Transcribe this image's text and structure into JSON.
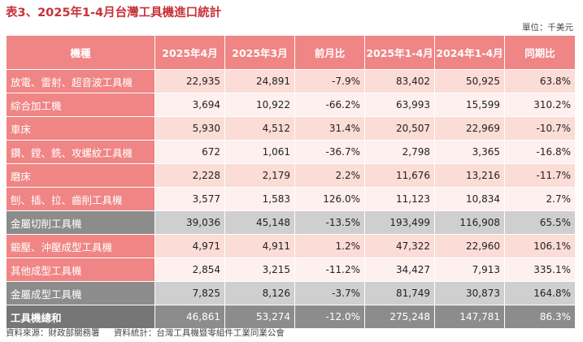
{
  "title": "表3、2025年1-4月台灣工具機進口統計",
  "unit": "單位：千美元",
  "columns": [
    "機種",
    "2025年4月",
    "2025年3月",
    "前月比",
    "2025年1-4月",
    "2024年1-4月",
    "同期比"
  ],
  "rows": [
    {
      "type": "odd",
      "cells": [
        "放電、雷射、超音波工具機",
        "22,935",
        "24,891",
        "-7.9%",
        "83,402",
        "50,925",
        "63.8%"
      ]
    },
    {
      "type": "even",
      "cells": [
        "綜合加工機",
        "3,694",
        "10,922",
        "-66.2%",
        "63,993",
        "15,599",
        "310.2%"
      ]
    },
    {
      "type": "odd",
      "cells": [
        "車床",
        "5,930",
        "4,512",
        "31.4%",
        "20,507",
        "22,969",
        "-10.7%"
      ]
    },
    {
      "type": "even",
      "cells": [
        "鑽、鏜、銑、攻螺紋工具機",
        "672",
        "1,061",
        "-36.7%",
        "2,798",
        "3,365",
        "-16.8%"
      ]
    },
    {
      "type": "odd",
      "cells": [
        "磨床",
        "2,228",
        "2,179",
        "2.2%",
        "11,676",
        "13,216",
        "-11.7%"
      ]
    },
    {
      "type": "even",
      "cells": [
        "刨、插、拉、齒削工具機",
        "3,577",
        "1,583",
        "126.0%",
        "11,123",
        "10,834",
        "2.7%"
      ]
    },
    {
      "type": "subtotal",
      "cells": [
        "金屬切削工具機",
        "39,036",
        "45,148",
        "-13.5%",
        "193,499",
        "116,908",
        "65.5%"
      ]
    },
    {
      "type": "odd",
      "cells": [
        "鍛壓、沖壓成型工具機",
        "4,971",
        "4,911",
        "1.2%",
        "47,322",
        "22,960",
        "106.1%"
      ]
    },
    {
      "type": "even",
      "cells": [
        "其他成型工具機",
        "2,854",
        "3,215",
        "-11.2%",
        "34,427",
        "7,913",
        "335.1%"
      ]
    },
    {
      "type": "subtotal",
      "cells": [
        "金屬成型工具機",
        "7,825",
        "8,126",
        "-3.7%",
        "81,749",
        "30,873",
        "164.8%"
      ]
    },
    {
      "type": "total",
      "cells": [
        "工具機總和",
        "46,861",
        "53,274",
        "-12.0%",
        "275,248",
        "147,781",
        "86.3%"
      ]
    }
  ],
  "source": {
    "data_source": "資料來源：財政部關務署",
    "statistics": "資料統計：台灣工具機暨零組件工業同業公會"
  }
}
